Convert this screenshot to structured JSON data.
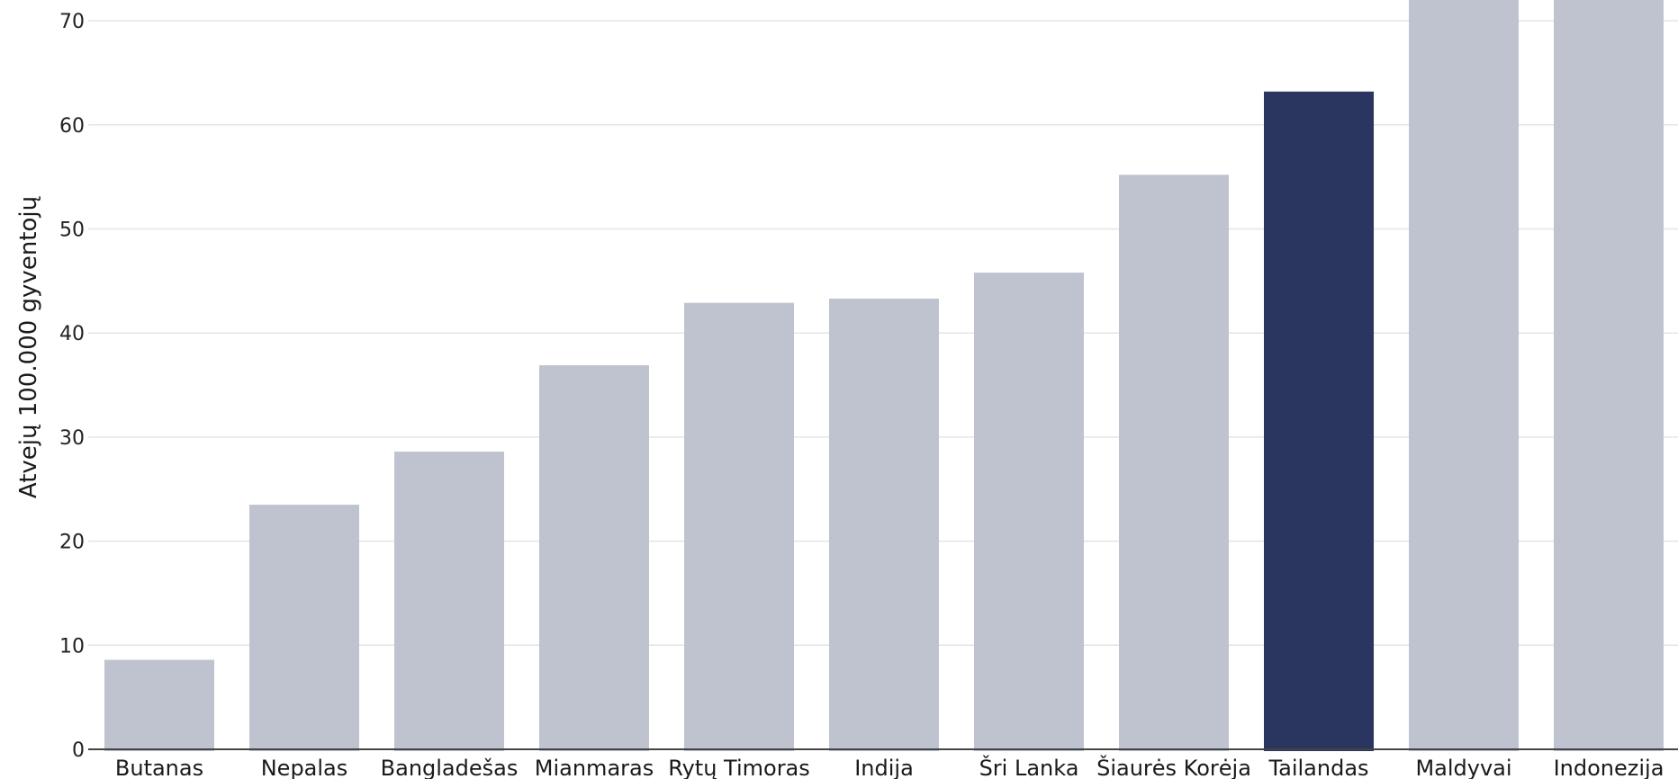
{
  "chart_data": {
    "type": "bar",
    "title": "",
    "xlabel": "",
    "ylabel": "Atvejų 100.000 gyventojų",
    "ylim": [
      0,
      72
    ],
    "yticks": [
      0,
      10,
      20,
      30,
      40,
      50,
      60,
      70
    ],
    "grid": true,
    "legend": "none",
    "categories": [
      "Butanas",
      "Nepalas",
      "Bangladešas",
      "Mianmaras",
      "Rytų Timoras",
      "Indija",
      "Šri Lanka",
      "Šiaurės Korėja",
      "Tailandas",
      "Maldyvai",
      "Indonezija"
    ],
    "values": [
      8.6,
      23.5,
      28.6,
      36.9,
      42.9,
      43.3,
      45.8,
      55.2,
      63.2,
      72,
      72
    ],
    "highlight": "Tailandas",
    "colors": {
      "bar": "#bfc3cf",
      "highlight": "#2a3660",
      "grid": "#e4e4e4",
      "axis": "#444444"
    }
  }
}
